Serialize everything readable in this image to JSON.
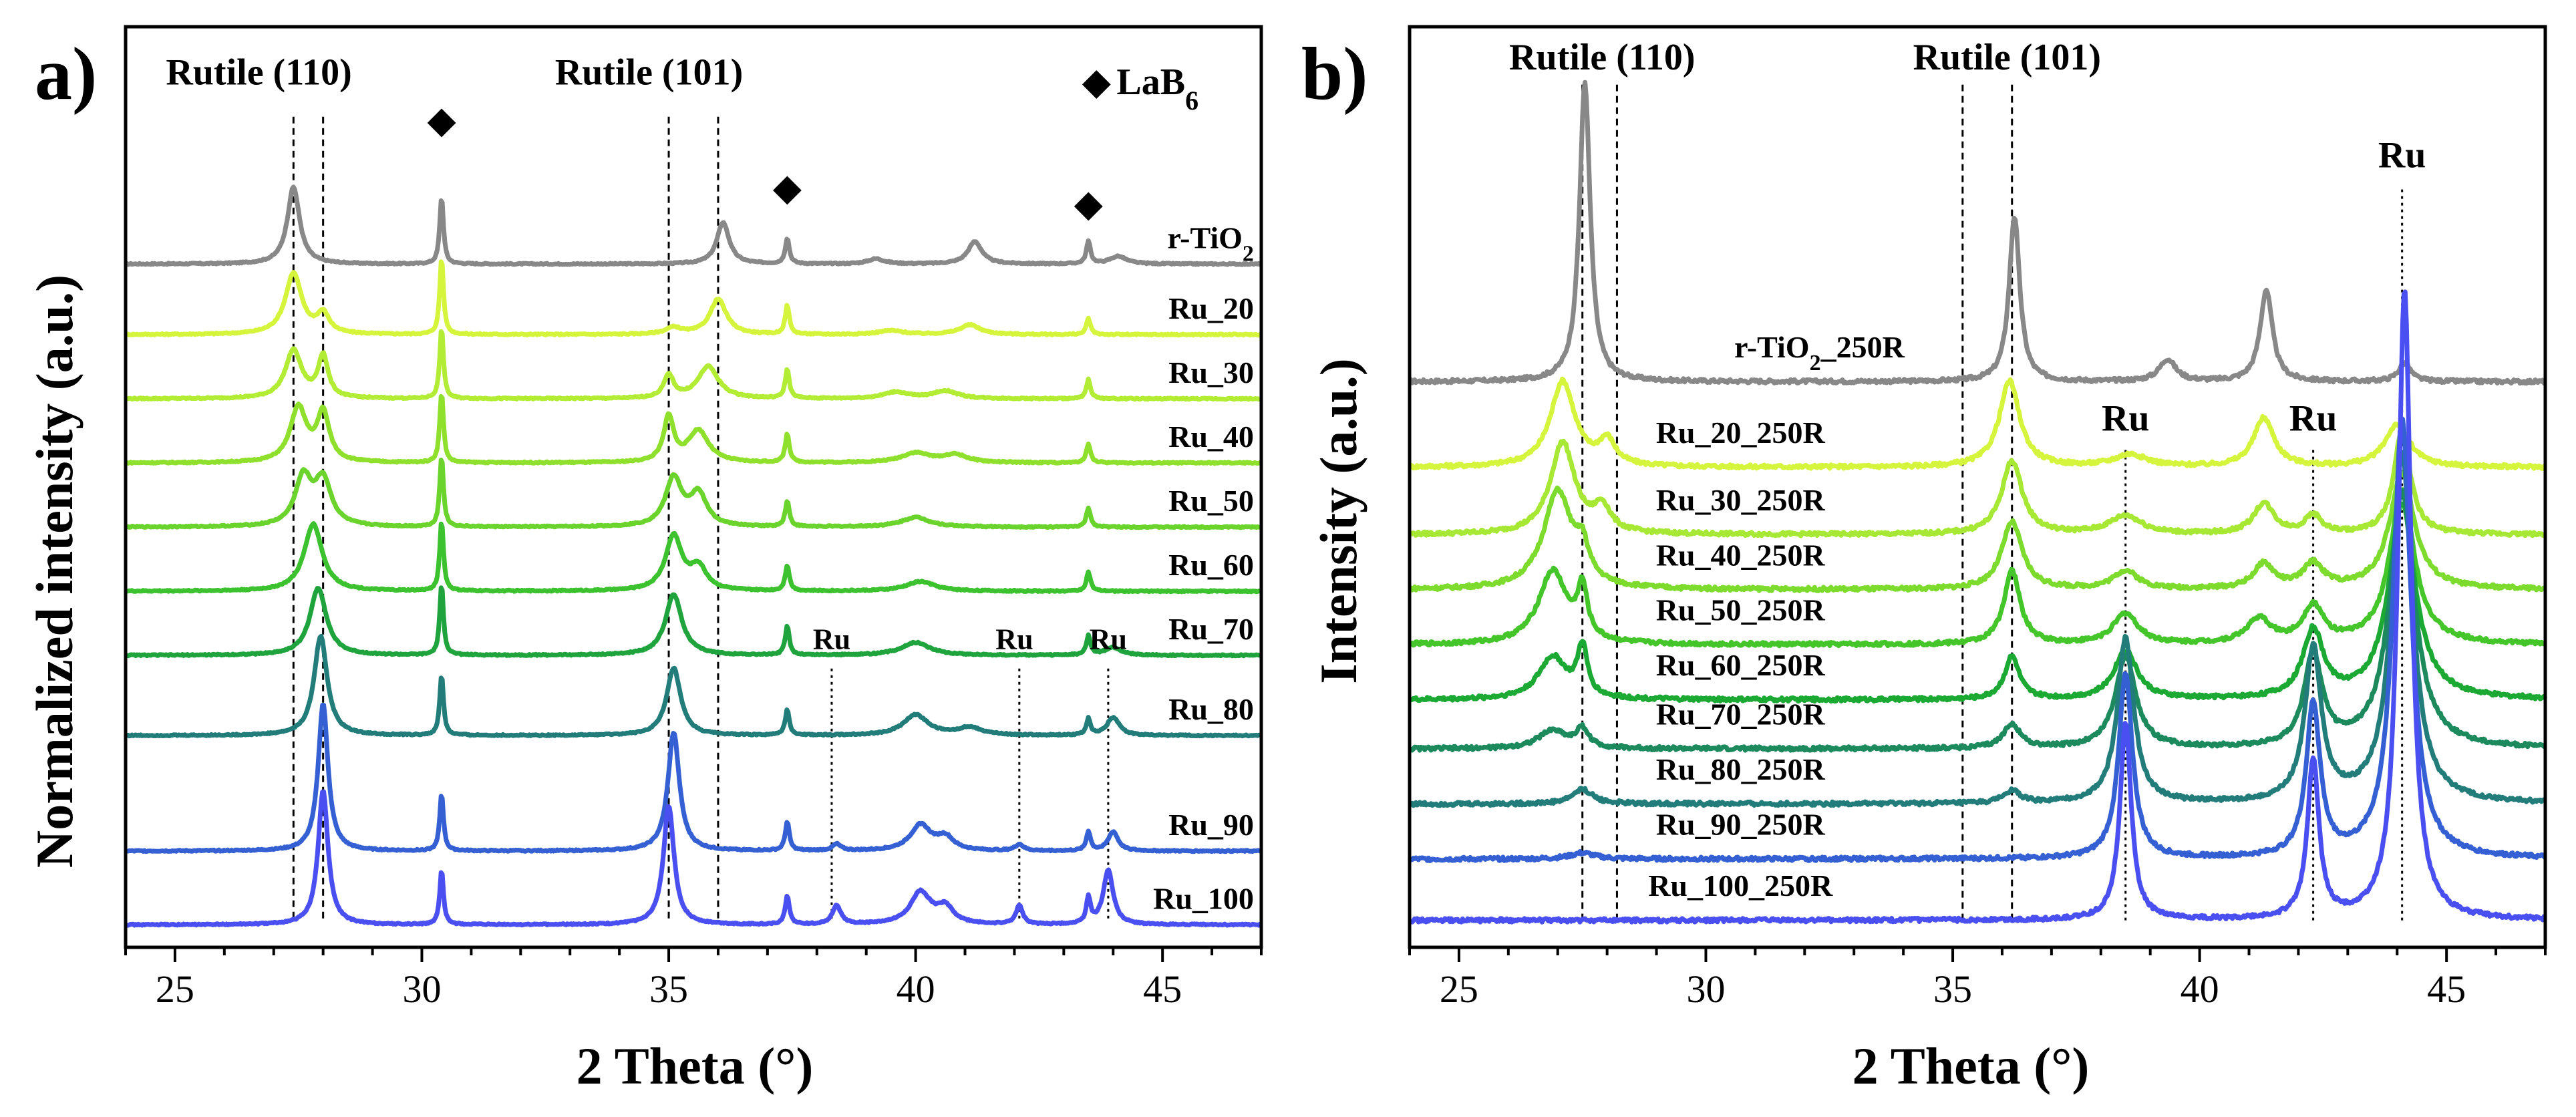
{
  "chart_data": [
    {
      "panel": "a)",
      "type": "line",
      "xlabel": "2 Theta (°)",
      "ylabel": "Normalized intensity (a.u.)",
      "xlim": [
        24,
        47
      ],
      "ylim": [
        -0.35,
        14.0
      ],
      "xticks": [
        "25",
        "30",
        "35",
        "40",
        "45"
      ],
      "xtick_values": [
        25,
        30,
        35,
        40,
        45
      ],
      "annotations": [
        {
          "text": "Rutile (110)",
          "x": 26.7,
          "y": 13.1
        },
        {
          "text": "Rutile (101)",
          "x": 34.6,
          "y": 13.1
        },
        {
          "text": "LaB",
          "sub": "6",
          "x": 44.9,
          "y": 12.95,
          "marker": "◆"
        }
      ],
      "lab6_markers": [
        {
          "symbol": "◆",
          "x": 30.4,
          "y": 12.35
        },
        {
          "symbol": "◆",
          "x": 37.4,
          "y": 11.3
        },
        {
          "symbol": "◆",
          "x": 43.5,
          "y": 11.05
        }
      ],
      "ru_labels": [
        {
          "text": "Ru",
          "x": 38.3,
          "y": 4.3
        },
        {
          "text": "Ru",
          "x": 42.0,
          "y": 4.3
        },
        {
          "text": "Ru",
          "x": 43.9,
          "y": 4.3
        }
      ],
      "ref_lines": [
        {
          "x": 27.4,
          "style": "dashed",
          "y0": 0.1,
          "y1": 12.6
        },
        {
          "x": 28.0,
          "style": "dashed",
          "y0": 0.1,
          "y1": 12.6
        },
        {
          "x": 35.0,
          "style": "dashed",
          "y0": 0.1,
          "y1": 12.6
        },
        {
          "x": 36.0,
          "style": "dashed",
          "y0": 0.1,
          "y1": 12.6
        },
        {
          "x": 38.3,
          "style": "dotted",
          "y0": 0.1,
          "y1": 4.0
        },
        {
          "x": 42.1,
          "style": "dotted",
          "y0": 0.1,
          "y1": 4.0
        },
        {
          "x": 43.9,
          "style": "dotted",
          "y0": 0.1,
          "y1": 4.0
        }
      ],
      "series": [
        {
          "name": "r-TiO",
          "sub": "2",
          "color": "#888888",
          "offset": 10.3,
          "peaks": [
            [
              27.4,
              1.2,
              0.15
            ],
            [
              30.4,
              1.05,
              0.045
            ],
            [
              36.1,
              0.65,
              0.15
            ],
            [
              37.4,
              0.4,
              0.05
            ],
            [
              39.2,
              0.08,
              0.2
            ],
            [
              41.2,
              0.35,
              0.17
            ],
            [
              43.5,
              0.35,
              0.05
            ],
            [
              44.1,
              0.12,
              0.2
            ]
          ]
        },
        {
          "name": "Ru_20",
          "color": "#d4f53c",
          "offset": 9.2,
          "peaks": [
            [
              27.4,
              0.95,
              0.2
            ],
            [
              28.0,
              0.3,
              0.15
            ],
            [
              30.4,
              1.2,
              0.045
            ],
            [
              35.1,
              0.1,
              0.2
            ],
            [
              36.0,
              0.55,
              0.2
            ],
            [
              37.4,
              0.45,
              0.05
            ],
            [
              39.5,
              0.06,
              0.3
            ],
            [
              41.1,
              0.15,
              0.25
            ],
            [
              43.5,
              0.25,
              0.05
            ]
          ]
        },
        {
          "name": "Ru_30",
          "color": "#b2ec34",
          "offset": 8.2,
          "peaks": [
            [
              27.4,
              0.75,
              0.2
            ],
            [
              28.0,
              0.65,
              0.12
            ],
            [
              30.4,
              1.1,
              0.045
            ],
            [
              35.0,
              0.35,
              0.12
            ],
            [
              35.8,
              0.5,
              0.25
            ],
            [
              37.4,
              0.45,
              0.05
            ],
            [
              39.6,
              0.1,
              0.3
            ],
            [
              40.6,
              0.12,
              0.3
            ],
            [
              43.5,
              0.3,
              0.05
            ]
          ]
        },
        {
          "name": "Ru_40",
          "color": "#8ee02c",
          "offset": 7.2,
          "peaks": [
            [
              27.5,
              0.85,
              0.2
            ],
            [
              28.0,
              0.75,
              0.15
            ],
            [
              30.4,
              1.1,
              0.045
            ],
            [
              35.0,
              0.7,
              0.12
            ],
            [
              35.6,
              0.5,
              0.25
            ],
            [
              37.4,
              0.45,
              0.05
            ],
            [
              40.0,
              0.15,
              0.35
            ],
            [
              40.8,
              0.12,
              0.3
            ],
            [
              43.5,
              0.3,
              0.05
            ]
          ]
        },
        {
          "name": "Ru_50",
          "color": "#6ad32c",
          "offset": 6.2,
          "peaks": [
            [
              27.6,
              0.75,
              0.2
            ],
            [
              28.0,
              0.7,
              0.2
            ],
            [
              30.4,
              1.1,
              0.045
            ],
            [
              35.1,
              0.75,
              0.2
            ],
            [
              35.6,
              0.5,
              0.2
            ],
            [
              37.4,
              0.4,
              0.05
            ],
            [
              40.0,
              0.15,
              0.35
            ],
            [
              43.5,
              0.3,
              0.05
            ]
          ]
        },
        {
          "name": "Ru_60",
          "color": "#3cc22e",
          "offset": 5.2,
          "peaks": [
            [
              27.8,
              1.05,
              0.22
            ],
            [
              30.4,
              1.1,
              0.045
            ],
            [
              35.1,
              0.85,
              0.2
            ],
            [
              35.6,
              0.35,
              0.2
            ],
            [
              37.4,
              0.4,
              0.05
            ],
            [
              40.1,
              0.15,
              0.35
            ],
            [
              43.5,
              0.3,
              0.05
            ]
          ]
        },
        {
          "name": "Ru_70",
          "color": "#1fa33c",
          "offset": 4.2,
          "peaks": [
            [
              27.9,
              1.05,
              0.2
            ],
            [
              30.4,
              1.1,
              0.045
            ],
            [
              35.1,
              0.95,
              0.2
            ],
            [
              37.4,
              0.45,
              0.05
            ],
            [
              40.0,
              0.2,
              0.35
            ],
            [
              43.5,
              0.3,
              0.05
            ],
            [
              44.0,
              0.12,
              0.2
            ]
          ]
        },
        {
          "name": "Ru_80",
          "color": "#227d7a",
          "offset": 2.95,
          "peaks": [
            [
              27.95,
              1.55,
              0.16
            ],
            [
              30.4,
              0.95,
              0.045
            ],
            [
              35.1,
              1.05,
              0.17
            ],
            [
              37.4,
              0.4,
              0.05
            ],
            [
              40.0,
              0.32,
              0.3
            ],
            [
              41.1,
              0.12,
              0.3
            ],
            [
              43.5,
              0.25,
              0.05
            ],
            [
              44.0,
              0.28,
              0.15
            ]
          ]
        },
        {
          "name": "Ru_90",
          "color": "#3560d4",
          "offset": 1.15,
          "peaks": [
            [
              28.0,
              2.3,
              0.12
            ],
            [
              30.4,
              0.9,
              0.045
            ],
            [
              35.1,
              1.85,
              0.14
            ],
            [
              37.4,
              0.45,
              0.05
            ],
            [
              38.4,
              0.1,
              0.1
            ],
            [
              40.1,
              0.4,
              0.25
            ],
            [
              40.6,
              0.2,
              0.2
            ],
            [
              42.1,
              0.1,
              0.1
            ],
            [
              43.5,
              0.3,
              0.05
            ],
            [
              44.0,
              0.3,
              0.12
            ]
          ]
        },
        {
          "name": "Ru_100",
          "color": "#4a4ff2",
          "offset": 0.0,
          "peaks": [
            [
              28.0,
              2.1,
              0.12
            ],
            [
              30.4,
              0.85,
              0.045
            ],
            [
              35.0,
              1.85,
              0.13
            ],
            [
              37.4,
              0.45,
              0.05
            ],
            [
              38.4,
              0.3,
              0.1
            ],
            [
              40.1,
              0.5,
              0.25
            ],
            [
              40.6,
              0.25,
              0.2
            ],
            [
              42.1,
              0.3,
              0.08
            ],
            [
              43.5,
              0.4,
              0.05
            ],
            [
              43.9,
              0.85,
              0.12
            ]
          ]
        }
      ]
    },
    {
      "panel": "b)",
      "type": "line",
      "xlabel": "2 Theta (°)",
      "ylabel": "Intensity (a.u.)",
      "xlim": [
        24,
        47
      ],
      "ylim": [
        -0.22,
        7.3
      ],
      "xticks": [
        "25",
        "30",
        "35",
        "40",
        "45"
      ],
      "xtick_values": [
        25,
        30,
        35,
        40,
        45
      ],
      "annotations": [
        {
          "text": "Rutile (110)",
          "x": 27.9,
          "y": 6.95
        },
        {
          "text": "Rutile (101)",
          "x": 36.1,
          "y": 6.95
        },
        {
          "text": "Ru",
          "x": 44.1,
          "y": 6.15
        },
        {
          "text": "Ru",
          "x": 38.5,
          "y": 4.0
        },
        {
          "text": "Ru",
          "x": 42.3,
          "y": 4.0
        }
      ],
      "ref_lines": [
        {
          "x": 27.5,
          "style": "dashed",
          "y0": 0.0,
          "y1": 6.85
        },
        {
          "x": 28.2,
          "style": "dashed",
          "y0": 0.0,
          "y1": 6.85
        },
        {
          "x": 35.2,
          "style": "dashed",
          "y0": 0.0,
          "y1": 6.85
        },
        {
          "x": 36.2,
          "style": "dashed",
          "y0": 0.0,
          "y1": 6.85
        },
        {
          "x": 38.5,
          "style": "dotted",
          "y0": 0.0,
          "y1": 3.85
        },
        {
          "x": 42.3,
          "style": "dotted",
          "y0": 0.0,
          "y1": 3.85
        },
        {
          "x": 44.1,
          "style": "dotted",
          "y0": 0.0,
          "y1": 6.0
        }
      ],
      "series": [
        {
          "name": "r-TiO",
          "sub": "2",
          "suffix": "_250R",
          "color": "#888888",
          "offset": 4.4,
          "label_x": 32.3,
          "peaks": [
            [
              27.55,
              2.45,
              0.13
            ],
            [
              36.25,
              1.35,
              0.13
            ],
            [
              39.35,
              0.18,
              0.2
            ],
            [
              41.35,
              0.75,
              0.15
            ],
            [
              44.15,
              0.15,
              0.15
            ]
          ]
        },
        {
          "name": "Ru_20_250R",
          "color": "#d4f53c",
          "offset": 3.7,
          "label_x": 30.7,
          "peaks": [
            [
              27.1,
              0.7,
              0.3
            ],
            [
              28.0,
              0.2,
              0.2
            ],
            [
              36.15,
              0.7,
              0.25
            ],
            [
              38.6,
              0.1,
              0.4
            ],
            [
              41.3,
              0.4,
              0.25
            ],
            [
              44.0,
              0.35,
              0.3
            ]
          ]
        },
        {
          "name": "Ru_30_250R",
          "color": "#a6e833",
          "offset": 3.15,
          "label_x": 30.7,
          "peaks": [
            [
              27.1,
              0.75,
              0.3
            ],
            [
              27.9,
              0.2,
              0.2
            ],
            [
              36.2,
              0.6,
              0.25
            ],
            [
              38.5,
              0.15,
              0.4
            ],
            [
              41.3,
              0.25,
              0.25
            ],
            [
              42.3,
              0.15,
              0.2
            ],
            [
              44.1,
              0.85,
              0.2
            ]
          ]
        },
        {
          "name": "Ru_40_250R",
          "color": "#7ddb2e",
          "offset": 2.7,
          "label_x": 30.7,
          "peaks": [
            [
              27.0,
              0.8,
              0.35
            ],
            [
              27.5,
              0.25,
              0.15
            ],
            [
              36.2,
              0.55,
              0.25
            ],
            [
              38.5,
              0.15,
              0.3
            ],
            [
              41.3,
              0.2,
              0.25
            ],
            [
              42.3,
              0.2,
              0.25
            ],
            [
              44.1,
              0.95,
              0.3
            ]
          ]
        },
        {
          "name": "Ru_50_250R",
          "color": "#44c62a",
          "offset": 2.25,
          "label_x": 30.7,
          "peaks": [
            [
              26.9,
              0.6,
              0.35
            ],
            [
              27.5,
              0.4,
              0.12
            ],
            [
              36.2,
              0.6,
              0.2
            ],
            [
              38.5,
              0.25,
              0.3
            ],
            [
              41.2,
              0.2,
              0.3
            ],
            [
              42.3,
              0.3,
              0.25
            ],
            [
              44.1,
              1.25,
              0.3
            ]
          ]
        },
        {
          "name": "Ru_60_250R",
          "color": "#1ba934",
          "offset": 1.8,
          "label_x": 30.7,
          "peaks": [
            [
              26.9,
              0.35,
              0.35
            ],
            [
              27.5,
              0.4,
              0.12
            ],
            [
              36.2,
              0.35,
              0.18
            ],
            [
              38.5,
              0.4,
              0.28
            ],
            [
              42.3,
              0.55,
              0.25
            ],
            [
              44.1,
              1.6,
              0.32
            ]
          ]
        },
        {
          "name": "Ru_70_250R",
          "color": "#1d8a5e",
          "offset": 1.4,
          "label_x": 30.7,
          "peaks": [
            [
              26.9,
              0.15,
              0.35
            ],
            [
              27.5,
              0.15,
              0.15
            ],
            [
              36.2,
              0.2,
              0.2
            ],
            [
              38.5,
              0.75,
              0.25
            ],
            [
              42.3,
              0.75,
              0.22
            ],
            [
              44.1,
              2.1,
              0.3
            ]
          ]
        },
        {
          "name": "Ru_80_250R",
          "color": "#227d7a",
          "offset": 0.95,
          "label_x": 30.7,
          "peaks": [
            [
              27.5,
              0.12,
              0.25
            ],
            [
              36.2,
              0.1,
              0.2
            ],
            [
              38.5,
              1.35,
              0.2
            ],
            [
              42.3,
              1.25,
              0.2
            ],
            [
              44.1,
              2.85,
              0.25
            ]
          ]
        },
        {
          "name": "Ru_90_250R",
          "color": "#3560d4",
          "offset": 0.5,
          "label_x": 30.7,
          "peaks": [
            [
              27.5,
              0.05,
              0.3
            ],
            [
              38.5,
              1.5,
              0.17
            ],
            [
              42.3,
              1.25,
              0.17
            ],
            [
              44.1,
              3.6,
              0.22
            ]
          ]
        },
        {
          "name": "Ru_100_250R",
          "color": "#4a4ff2",
          "offset": 0.0,
          "label_x": 30.7,
          "peaks": [
            [
              38.5,
              1.6,
              0.14
            ],
            [
              42.3,
              1.3,
              0.14
            ],
            [
              44.15,
              5.15,
              0.16
            ]
          ]
        }
      ]
    }
  ]
}
